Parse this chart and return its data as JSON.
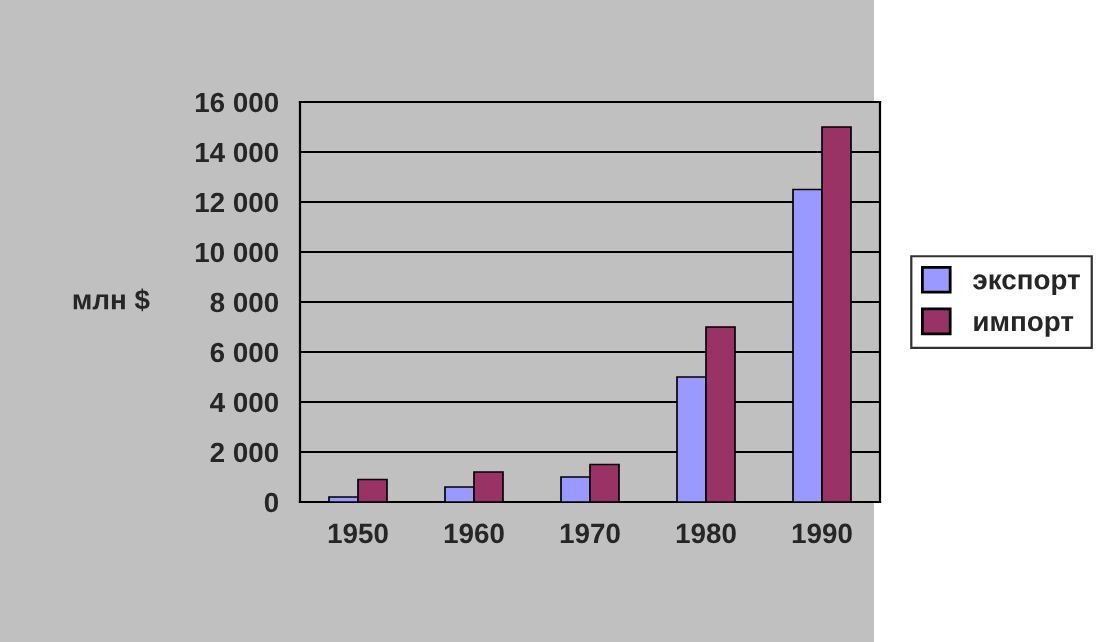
{
  "chart_data": {
    "type": "bar",
    "ylabel": "млн $",
    "categories": [
      "1950",
      "1960",
      "1970",
      "1980",
      "1990"
    ],
    "series": [
      {
        "name": "экспорт",
        "color": "#9999ff",
        "values": [
          200,
          600,
          1000,
          5000,
          12500
        ]
      },
      {
        "name": "импорт",
        "color": "#993366",
        "values": [
          900,
          1200,
          1500,
          7000,
          15000
        ]
      }
    ],
    "ylim": [
      0,
      16000
    ],
    "yticks": [
      {
        "value": 0,
        "label": "0"
      },
      {
        "value": 2000,
        "label": "2 000"
      },
      {
        "value": 4000,
        "label": "4 000"
      },
      {
        "value": 6000,
        "label": "6 000"
      },
      {
        "value": 8000,
        "label": "8 000"
      },
      {
        "value": 10000,
        "label": "10 000"
      },
      {
        "value": 12000,
        "label": "12 000"
      },
      {
        "value": 14000,
        "label": "14 000"
      },
      {
        "value": 16000,
        "label": "16 000"
      }
    ],
    "grid": "y",
    "legend": "right"
  }
}
